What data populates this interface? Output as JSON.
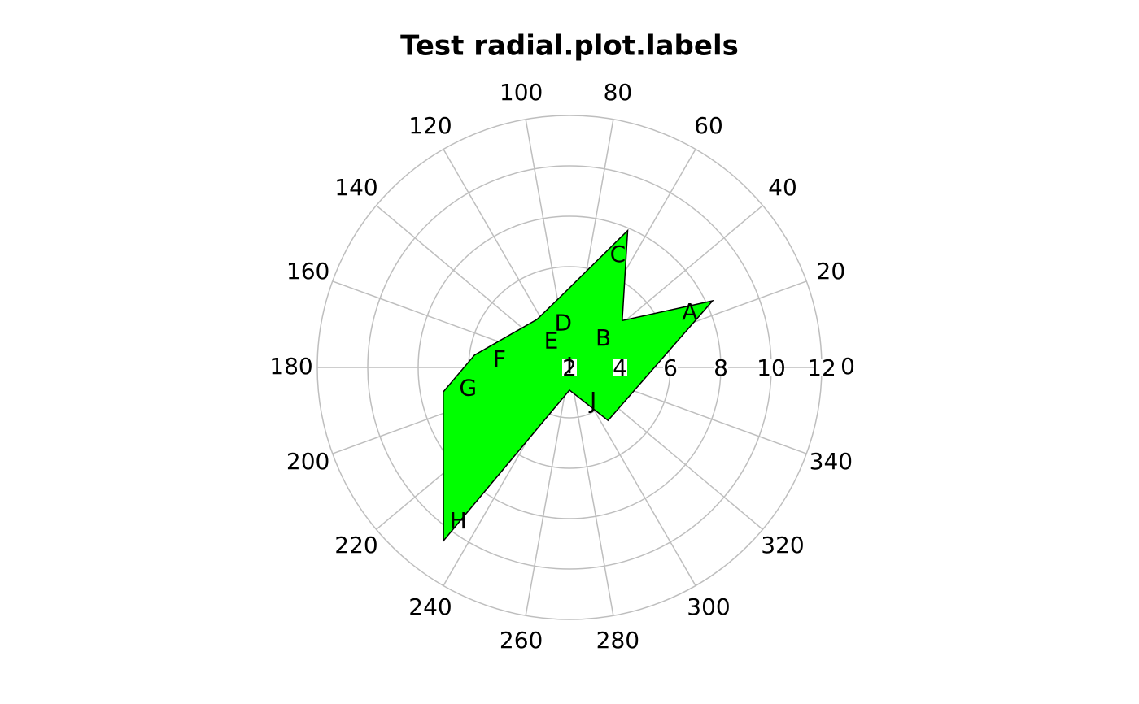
{
  "chart_data": {
    "type": "radial",
    "title": "Test radial.plot.labels",
    "theta": [
      25,
      41.7,
      67,
      98,
      124,
      172.6,
      191,
      234,
      270,
      306
    ],
    "values": [
      8.26,
      4.8,
      7.9,
      4.8,
      4.3,
      5.8,
      7.1,
      10.5,
      2.9,
      4.6
    ],
    "labels": [
      "A",
      "B",
      "C",
      "D",
      "E",
      "F",
      "G",
      "H",
      "I",
      "J"
    ],
    "color": "#00ff00",
    "rlim": [
      2,
      12
    ],
    "rticks": [
      2,
      4,
      6,
      8,
      10,
      12
    ],
    "thetaticks": [
      0,
      20,
      40,
      60,
      80,
      100,
      120,
      140,
      160,
      180,
      200,
      220,
      240,
      260,
      280,
      300,
      320,
      340
    ],
    "grid": true
  }
}
